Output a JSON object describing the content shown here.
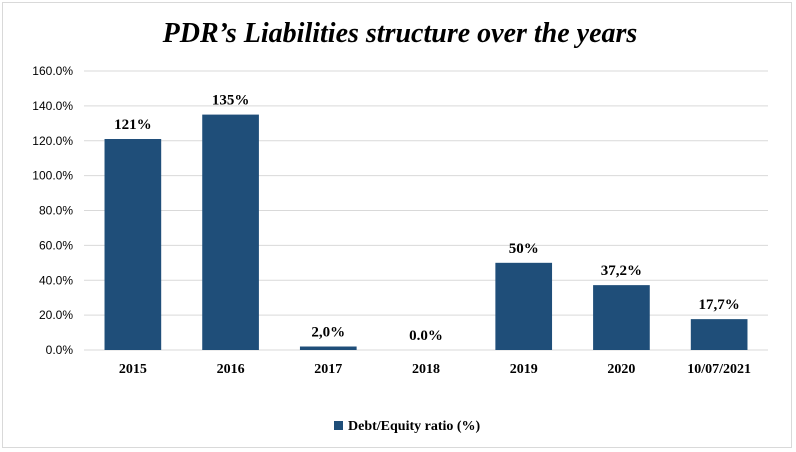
{
  "chart_data": {
    "type": "bar",
    "title": "PDR’s Liabilities structure over the years",
    "xlabel": "",
    "ylabel": "",
    "categories": [
      "2015",
      "2016",
      "2017",
      "2018",
      "2019",
      "2020",
      "10/07/2021"
    ],
    "series": [
      {
        "name": "Debt/Equity ratio (%)",
        "values": [
          121,
          135,
          2.0,
          0.0,
          50,
          37.2,
          17.7
        ],
        "data_labels": [
          "121%",
          "135%",
          "2,0%",
          "0.0%",
          "50%",
          "37,2%",
          "17,7%"
        ]
      }
    ],
    "ylim": [
      0,
      160
    ],
    "yticks": [
      0,
      20,
      40,
      60,
      80,
      100,
      120,
      140,
      160
    ],
    "ytick_labels": [
      "0.0%",
      "20.0%",
      "40.0%",
      "60.0%",
      "80.0%",
      "100.0%",
      "120.0%",
      "140.0%",
      "160.0%"
    ],
    "grid": true,
    "legend_position": "bottom",
    "bar_color": "#1f4e79"
  }
}
